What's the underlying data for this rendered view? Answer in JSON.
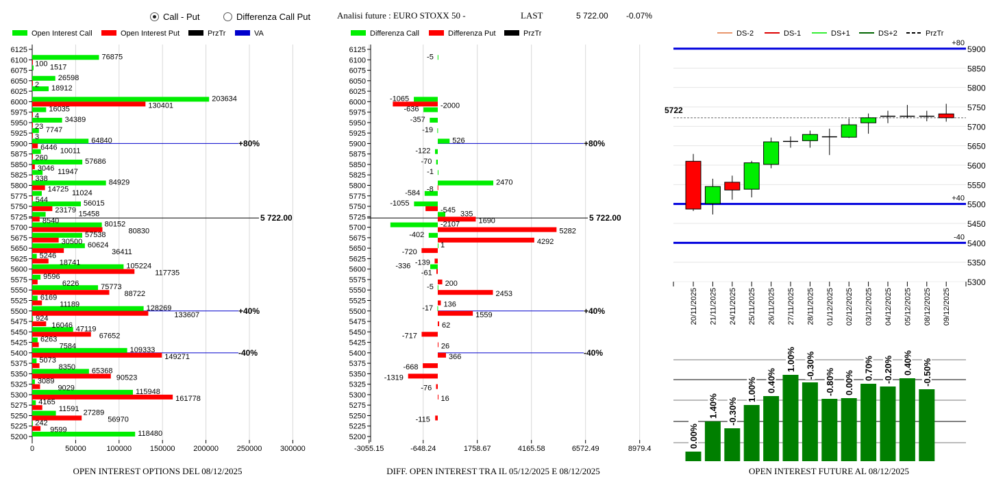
{
  "header": {
    "radio_call_put": "Call - Put",
    "radio_diff": "Differenza Call Put",
    "selected": "Call - Put",
    "analysis_label": "Analisi future : EURO STOXX 50 -",
    "last_label": "LAST",
    "last_value": "5 722.00",
    "change": "-0.07%"
  },
  "colors": {
    "call": "#00ee00",
    "put": "#ff0000",
    "przTr": "#000000",
    "va": "#0000cc",
    "future_bar": "#007f00",
    "ds_minus2": "#e8956b",
    "ds_minus1": "#dd0000",
    "ds_plus1": "#33ee33",
    "ds_plus2": "#006400"
  },
  "chart_data": [
    {
      "type": "bar",
      "orientation": "horizontal",
      "title": "OPEN INTEREST OPTIONS DEL 08/12/2025",
      "legend": [
        "Open Interest Call",
        "Open Interest Put",
        "PrzTr",
        "VA"
      ],
      "legend_placement": "top",
      "xlim": [
        0,
        300000
      ],
      "xticks": [
        "0",
        "50000",
        "100000",
        "150000",
        "200000",
        "250000",
        "300000"
      ],
      "grid": true,
      "categories": [
        6125,
        6100,
        6075,
        6050,
        6025,
        6000,
        5975,
        5950,
        5925,
        5900,
        5875,
        5850,
        5825,
        5800,
        5775,
        5750,
        5725,
        5700,
        5675,
        5650,
        5625,
        5600,
        5575,
        5550,
        5525,
        5500,
        5475,
        5450,
        5425,
        5400,
        5375,
        5350,
        5325,
        5300,
        5275,
        5250,
        5225,
        5200
      ],
      "series": [
        {
          "name": "Open Interest Call",
          "values": [
            null,
            76875,
            1517,
            26598,
            18912,
            203634,
            16035,
            34389,
            7747,
            64840,
            10011,
            57686,
            11947,
            84929,
            11024,
            56015,
            15458,
            80152,
            57538,
            60624,
            5246,
            105224,
            9596,
            75773,
            6169,
            128269,
            924,
            47119,
            6263,
            109333,
            5073,
            65368,
            3089,
            115948,
            4165,
            27289,
            242,
            118480
          ]
        },
        {
          "name": "Open Interest Put",
          "values": [
            null,
            100,
            null,
            2,
            null,
            130401,
            4,
            23,
            3,
            6446,
            260,
            3046,
            338,
            14725,
            544,
            23179,
            8540,
            80830,
            30500,
            36411,
            18741,
            117735,
            6226,
            88722,
            11189,
            133607,
            16046,
            67652,
            7584,
            149271,
            8350,
            90523,
            9029,
            161778,
            11591,
            56970,
            9599,
            null
          ]
        }
      ],
      "przTr": {
        "value": 5722,
        "label": "5 722.00"
      },
      "va_lines": [
        {
          "strike": 5900,
          "label": "+80%"
        },
        {
          "strike": 5500,
          "label": "+40%"
        },
        {
          "strike": 5400,
          "label": "-40%"
        }
      ]
    },
    {
      "type": "bar",
      "orientation": "horizontal",
      "title": "DIFF. OPEN INTEREST TRA IL 05/12/2025 E 08/12/2025",
      "legend": [
        "Differenza Call",
        "Differenza Put",
        "PrzTr"
      ],
      "legend_placement": "top",
      "xlim": [
        -3055.15,
        8979.4
      ],
      "xticks": [
        "-3055.15",
        "-648.24",
        "1758.67",
        "4165.58",
        "6572.49",
        "8979.4"
      ],
      "grid": true,
      "categories": [
        6125,
        6100,
        6075,
        6050,
        6025,
        6000,
        5975,
        5950,
        5925,
        5900,
        5875,
        5850,
        5825,
        5800,
        5775,
        5750,
        5725,
        5700,
        5675,
        5650,
        5625,
        5600,
        5575,
        5550,
        5525,
        5500,
        5475,
        5450,
        5425,
        5400,
        5375,
        5350,
        5325,
        5300,
        5275,
        5250,
        5225,
        5200
      ],
      "series": [
        {
          "name": "Differenza Call",
          "values": [
            null,
            -5,
            null,
            null,
            null,
            -1065,
            -636,
            -357,
            -19,
            526,
            -122,
            -70,
            -1,
            2470,
            -584,
            -1055,
            335,
            -2107,
            -402,
            1,
            null,
            -336,
            null,
            -5,
            null,
            -17,
            null,
            null,
            null,
            null,
            null,
            null,
            null,
            null,
            null,
            null,
            null,
            null
          ]
        },
        {
          "name": "Differenza Put",
          "values": [
            null,
            null,
            null,
            null,
            null,
            -2000,
            null,
            null,
            null,
            null,
            null,
            null,
            null,
            -8,
            null,
            -545,
            1690,
            5282,
            4292,
            -720,
            -139,
            -61,
            200,
            2453,
            136,
            1559,
            62,
            -717,
            26,
            366,
            -668,
            -1319,
            -76,
            16,
            null,
            -115,
            null,
            null
          ]
        }
      ],
      "przTr": {
        "value": 5722,
        "label": "5 722.00"
      },
      "va_lines": [
        {
          "strike": 5900,
          "label": "+80%"
        },
        {
          "strike": 5500,
          "label": "+40%"
        },
        {
          "strike": 5400,
          "label": "-40%"
        }
      ]
    },
    {
      "type": "candlestick",
      "legend": [
        "DS-2",
        "DS-1",
        "DS+1",
        "DS+2",
        "PrzTr"
      ],
      "legend_placement": "top",
      "ylim": [
        5300,
        5900
      ],
      "yticks": [
        "5900",
        "5850",
        "5800",
        "5750",
        "5700",
        "5650",
        "5600",
        "5550",
        "5500",
        "5450",
        "5400",
        "5350",
        "5300"
      ],
      "grid": true,
      "dates": [
        "20/11/2025",
        "21/11/2025",
        "24/11/2025",
        "25/11/2025",
        "26/11/2025",
        "27/11/2025",
        "28/11/2025",
        "01/12/2025",
        "02/12/2025",
        "03/12/2025",
        "04/12/2025",
        "05/12/2025",
        "08/12/2025",
        "09/12/2025"
      ],
      "ohlc": [
        [
          5610,
          5629,
          5482,
          5487
        ],
        [
          5501,
          5565,
          5473,
          5545
        ],
        [
          5556,
          5573,
          5511,
          5536
        ],
        [
          5538,
          5611,
          5517,
          5606
        ],
        [
          5602,
          5671,
          5592,
          5660
        ],
        [
          5661,
          5674,
          5645,
          5661
        ],
        [
          5663,
          5689,
          5645,
          5679
        ],
        [
          5673,
          5694,
          5626,
          5673
        ],
        [
          5672,
          5720,
          5670,
          5704
        ],
        [
          5709,
          5733,
          5681,
          5722
        ],
        [
          5726,
          5740,
          5708,
          5726
        ],
        [
          5726,
          5755,
          5721,
          5726
        ],
        [
          5726,
          5740,
          5713,
          5726
        ],
        [
          5732,
          5758,
          5712,
          5722
        ]
      ],
      "przTr": {
        "value": 5722,
        "label": "5722"
      },
      "levels": [
        {
          "value": 5900,
          "label": "+80"
        },
        {
          "value": 5500,
          "label": "+40"
        },
        {
          "value": 5400,
          "label": "-40"
        }
      ]
    },
    {
      "type": "bar",
      "title": "OPEN INTEREST FUTURE AL 08/12/2025",
      "categories": [
        "20/11/2025",
        "21/11/2025",
        "24/11/2025",
        "25/11/2025",
        "26/11/2025",
        "27/11/2025",
        "28/11/2025",
        "01/12/2025",
        "02/12/2025",
        "03/12/2025",
        "04/12/2025",
        "05/12/2025",
        "08/12/2025"
      ],
      "relative_values": [
        14,
        58,
        48,
        82,
        95,
        126,
        115,
        91,
        92,
        113,
        109,
        121,
        105
      ],
      "labels": [
        "0.00%",
        "1.40%",
        "-0.30%",
        "1.00%",
        "0.40%",
        "1.00%",
        "-0.30%",
        "-0.80%",
        "0.00%",
        "0.70%",
        "-0.20%",
        "0.40%",
        "-0.50%"
      ],
      "grid": true
    }
  ]
}
